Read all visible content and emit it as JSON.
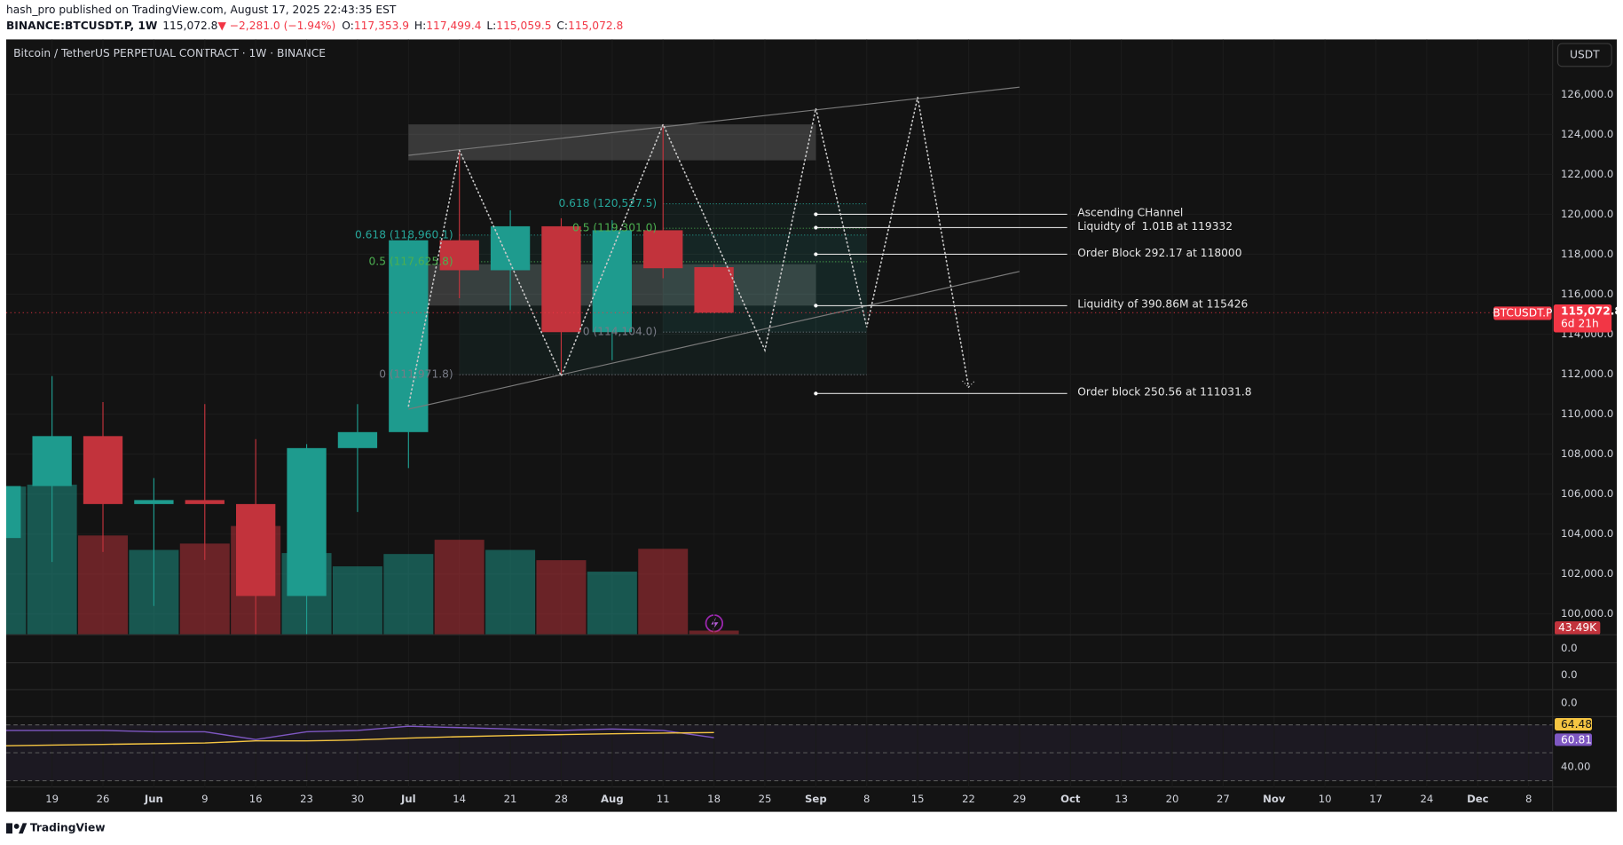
{
  "header": {
    "publisher": "hash_pro published on TradingView.com, August 17, 2025 22:43:35 EST",
    "symbol": "BINANCE:BTCUSDT.P, 1W",
    "last": "115,072.8",
    "change": "▼ −2,281.0 (−1.94%)",
    "ohlc": [
      {
        "label": "O:",
        "value": "117,353.9"
      },
      {
        "label": "H:",
        "value": "117,499.4"
      },
      {
        "label": "L:",
        "value": "115,059.5"
      },
      {
        "label": "C:",
        "value": "115,072.8"
      }
    ]
  },
  "chart_data": {
    "type": "candlestick",
    "title": "Bitcoin / TetherUS PERPETUAL CONTRACT · 1W · BINANCE",
    "currency": "USDT",
    "x": [
      0,
      1,
      2,
      3,
      4,
      5,
      6,
      7,
      8,
      9,
      10,
      11,
      12,
      13,
      14
    ],
    "open": [
      103800,
      106400,
      108900,
      105500,
      105700,
      105500,
      100900,
      108300,
      109100,
      118700,
      117200,
      119400,
      114100,
      119200,
      117353.9
    ],
    "high": [
      107000,
      111900,
      110600,
      106800,
      110500,
      108750,
      108500,
      110500,
      118900,
      123200,
      120200,
      119800,
      119700,
      124500,
      117499.4
    ],
    "low": [
      102500,
      102600,
      103100,
      100400,
      102700,
      98200,
      98300,
      105100,
      107300,
      115800,
      115200,
      112000,
      112700,
      116800,
      115059.5
    ],
    "close": [
      106400,
      108900,
      105500,
      105700,
      105500,
      100900,
      108300,
      109100,
      118700,
      117200,
      119400,
      114100,
      119200,
      117300,
      115072.8
    ],
    "up_color": "#1e9b8e",
    "down_color": "#c2333c",
    "xlim": [
      0.1,
      30.47
    ],
    "xticks": [
      {
        "value": 1,
        "label": "19"
      },
      {
        "value": 2,
        "label": "26"
      },
      {
        "value": 3,
        "label": "Jun"
      },
      {
        "value": 4,
        "label": "9"
      },
      {
        "value": 5,
        "label": "16"
      },
      {
        "value": 6,
        "label": "23"
      },
      {
        "value": 7,
        "label": "30"
      },
      {
        "value": 8,
        "label": "Jul"
      },
      {
        "value": 9,
        "label": "14"
      },
      {
        "value": 10,
        "label": "21"
      },
      {
        "value": 11,
        "label": "28"
      },
      {
        "value": 12,
        "label": "Aug"
      },
      {
        "value": 13,
        "label": "11"
      },
      {
        "value": 14,
        "label": "18"
      },
      {
        "value": 15,
        "label": "25"
      },
      {
        "value": 16,
        "label": "Sep"
      },
      {
        "value": 17,
        "label": "8"
      },
      {
        "value": 18,
        "label": "15"
      },
      {
        "value": 19,
        "label": "22"
      },
      {
        "value": 20,
        "label": "29"
      },
      {
        "value": 21,
        "label": "Oct"
      },
      {
        "value": 22,
        "label": "13"
      },
      {
        "value": 23,
        "label": "20"
      },
      {
        "value": 24,
        "label": "27"
      },
      {
        "value": 25,
        "label": "Nov"
      },
      {
        "value": 26,
        "label": "10"
      },
      {
        "value": 27,
        "label": "17"
      },
      {
        "value": 28,
        "label": "24"
      },
      {
        "value": 29,
        "label": "Dec"
      },
      {
        "value": 30,
        "label": "8"
      }
    ],
    "ylim": [
      98960,
      128750
    ],
    "yticks": [
      {
        "value": 100000,
        "label": "100,000.0"
      },
      {
        "value": 102000,
        "label": "102,000.0"
      },
      {
        "value": 104000,
        "label": "104,000.0"
      },
      {
        "value": 106000,
        "label": "106,000.0"
      },
      {
        "value": 108000,
        "label": "108,000.0"
      },
      {
        "value": 110000,
        "label": "110,000.0"
      },
      {
        "value": 112000,
        "label": "112,000.0"
      },
      {
        "value": 114000,
        "label": "114,000.0"
      },
      {
        "value": 116000,
        "label": "116,000.0"
      },
      {
        "value": 118000,
        "label": "118,000.0"
      },
      {
        "value": 120000,
        "label": "120,000.0"
      },
      {
        "value": 122000,
        "label": "122,000.0"
      },
      {
        "value": 124000,
        "label": "124,000.0"
      },
      {
        "value": 126000,
        "label": "126,000.0"
      }
    ],
    "grid": true,
    "last_price": {
      "value": 115072.8,
      "label": "115,072.8",
      "symbol": "BTCUSDT.P",
      "countdown": "6d 21h",
      "color": "#f23645"
    },
    "volume": {
      "values": [
        1560,
        1580,
        1045,
        893,
        960,
        1145,
        860,
        720,
        850,
        1000,
        893,
        785,
        665,
        905,
        43.49
      ],
      "last_label": "43.49K",
      "ylim": [
        0,
        6268
      ]
    },
    "channel": [
      {
        "x": [
          8,
          20
        ],
        "y": [
          122950,
          126360
        ]
      },
      {
        "x": [
          8,
          20
        ],
        "y": [
          110250,
          117140
        ]
      }
    ],
    "zones": [
      {
        "x": [
          8,
          16
        ],
        "y": [
          122700,
          124500
        ]
      },
      {
        "x": [
          8,
          16
        ],
        "y": [
          115430,
          117500
        ]
      }
    ],
    "fib": [
      {
        "x": [
          13,
          17
        ],
        "levels": [
          {
            "value": 120527.5,
            "label": "0.618 (120,527.5)",
            "color": "#26a69a"
          },
          {
            "value": 119301,
            "label": "0.5 (119,301.0)",
            "color": "#4caf50"
          },
          {
            "value": 114104,
            "label": "0 (114,104.0)",
            "color": "#787b86"
          }
        ]
      },
      {
        "x": [
          9,
          17
        ],
        "levels": [
          {
            "value": 118960.1,
            "label": "0.618 (118,960.1)",
            "color": "#26a69a"
          },
          {
            "value": 117625.8,
            "label": "0.5 (117,625.8)",
            "color": "#4caf50"
          },
          {
            "value": 111971.8,
            "label": "0 (111,971.8)",
            "color": "#787b86"
          }
        ]
      }
    ],
    "path": {
      "x": [
        8,
        9,
        11,
        13,
        15,
        16,
        17,
        18,
        19
      ],
      "y": [
        110400,
        123200,
        111900,
        124500,
        113200,
        125300,
        114350,
        125850,
        111350
      ]
    },
    "annotations": [
      {
        "text": "Ascending CHannel",
        "price": 120000
      },
      {
        "text": "Liquidty of  1.01B at 119332",
        "price": 119332
      },
      {
        "text": "Order Block 292.17 at 118000",
        "price": 118000
      },
      {
        "text": "Liquidity of 390.86M at 115426",
        "price": 115426
      },
      {
        "text": "Order block 250.56 at 111031.8",
        "price": 111031.8
      }
    ],
    "annotation_x": 16,
    "panes": [
      {
        "value": 0,
        "label": "0.0"
      },
      {
        "value": 0,
        "label": "0.0"
      },
      {
        "value": 0,
        "label": "0.0"
      }
    ],
    "rsi": {
      "ylim": [
        30,
        70
      ],
      "levels": [
        70,
        50,
        30
      ],
      "yticks": [
        {
          "value": 40,
          "label": "40.00"
        }
      ],
      "series": [
        {
          "color": "#7e57c2",
          "values": [
            66,
            66,
            66,
            65,
            65,
            59.5,
            65,
            66,
            69,
            68,
            67,
            66,
            67,
            66,
            60.81
          ]
        },
        {
          "color": "#f5c542",
          "values": [
            55,
            55.5,
            56,
            56.5,
            57,
            58.5,
            58.5,
            59.2,
            60.5,
            61.5,
            62.3,
            63,
            63.6,
            64.1,
            64.48
          ]
        }
      ]
    }
  },
  "footer": {
    "brand": "TradingView"
  }
}
